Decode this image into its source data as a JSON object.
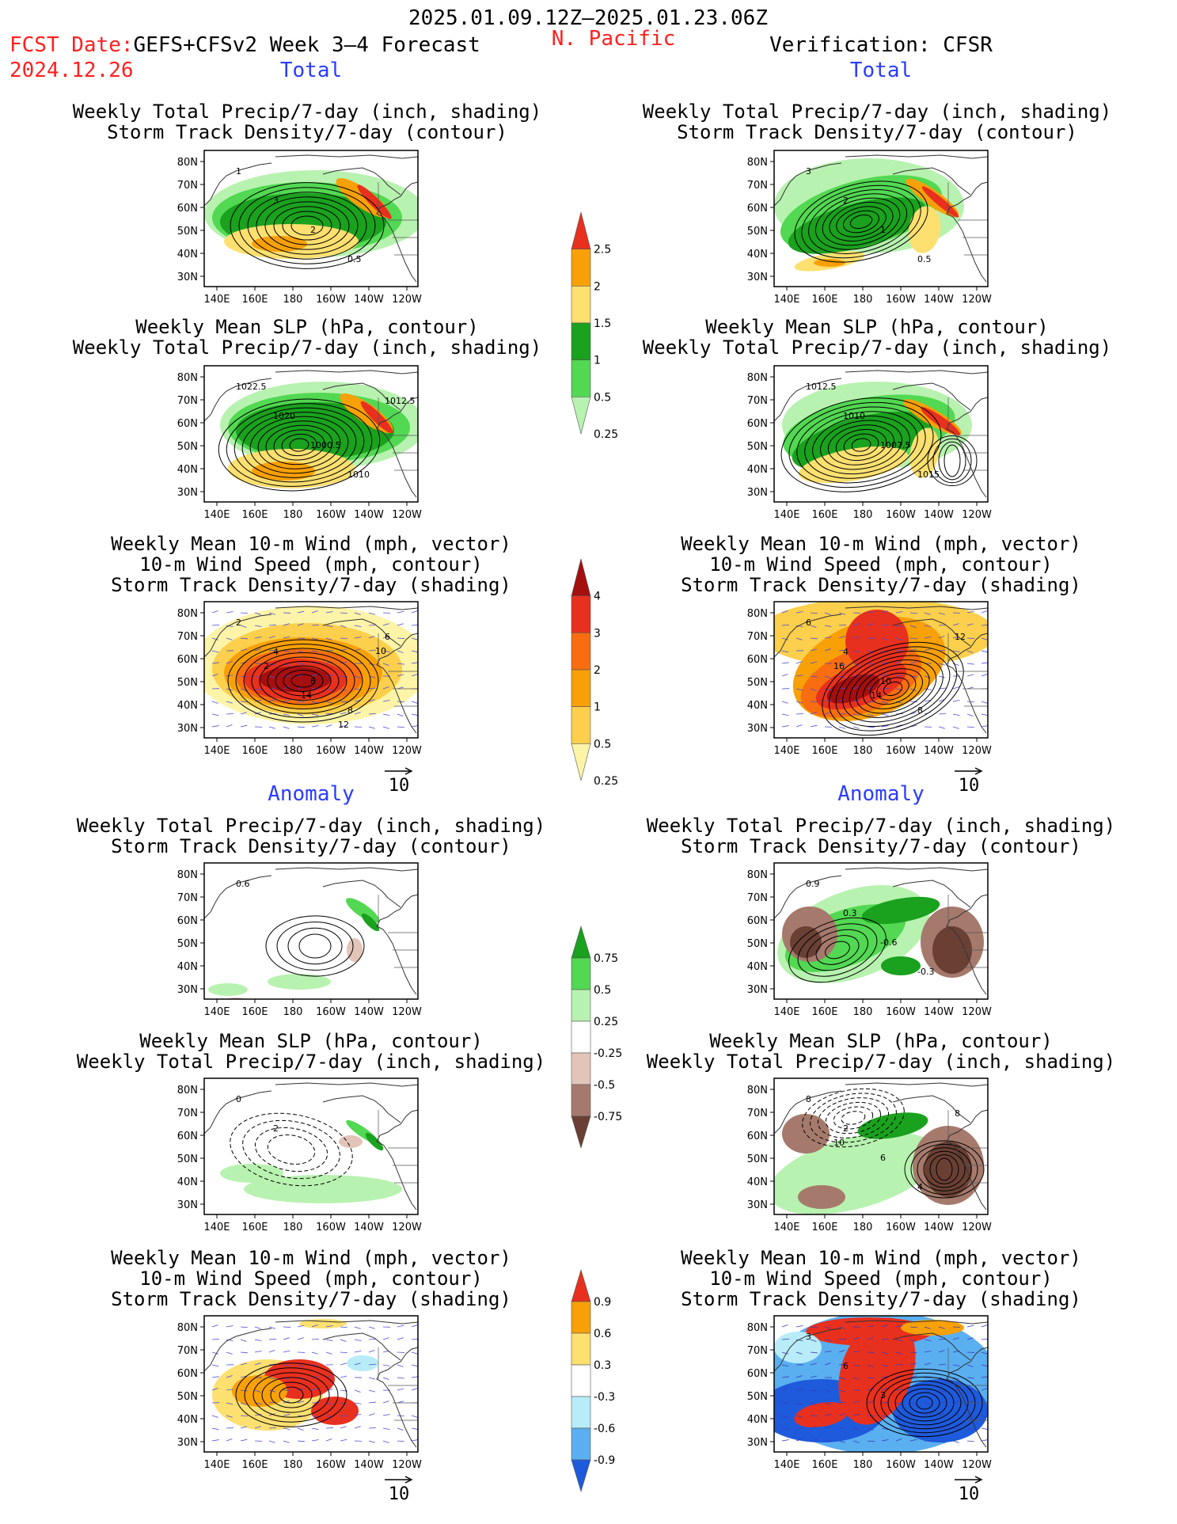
{
  "header": {
    "date_range": "2025.01.09.12Z–2025.01.23.06Z",
    "fcst_date_label": "FCST Date:",
    "fcst_model": "GEFS+CFSv2 Week 3–4 Forecast",
    "fcst_date": "2024.12.26",
    "region": "N. Pacific",
    "verification": "Verification: CFSR"
  },
  "sections": {
    "total": "Total",
    "anomaly": "Anomaly"
  },
  "panel_titles": {
    "precip_storm": [
      "Weekly Total Precip/7-day (inch, shading)",
      "Storm Track Density/7-day (contour)"
    ],
    "slp_precip": [
      "Weekly Mean SLP (hPa, contour)",
      "Weekly Total Precip/7-day (inch, shading)"
    ],
    "wind_storm": [
      "Weekly Mean 10-m Wind (mph, vector)",
      "10-m Wind Speed (mph, contour)",
      "Storm Track Density/7-day (shading)"
    ]
  },
  "axes": {
    "lat_ticks": [
      "80N",
      "70N",
      "60N",
      "50N",
      "40N",
      "30N"
    ],
    "lon_ticks": [
      "140E",
      "160E",
      "180",
      "160W",
      "140W",
      "120W"
    ]
  },
  "vector_ref": "10",
  "colorbars": {
    "precip_total": {
      "labels": [
        "2.5",
        "2",
        "1.5",
        "1",
        "0.5",
        "0.25"
      ],
      "colors": [
        "#e8301e",
        "#f8a008",
        "#fde070",
        "#1aa11e",
        "#52d852",
        "#b8f2b0"
      ]
    },
    "storm_total": {
      "labels": [
        "4",
        "3",
        "2",
        "1",
        "0.5",
        "0.25"
      ],
      "colors": [
        "#a50f0f",
        "#e8301e",
        "#f86d10",
        "#f8a008",
        "#fccf4c",
        "#fdf4a8"
      ]
    },
    "precip_anom": {
      "labels": [
        "0.75",
        "0.5",
        "0.25",
        "-0.25",
        "-0.5",
        "-0.75"
      ],
      "colors": [
        "#1aa11e",
        "#52d852",
        "#b8f2b0",
        "#ffffff",
        "#e3c4b8",
        "#a57a6c",
        "#6a4034"
      ]
    },
    "storm_anom": {
      "labels": [
        "0.9",
        "0.6",
        "0.3",
        "-0.3",
        "-0.6",
        "-0.9"
      ],
      "colors": [
        "#e8301e",
        "#f8a008",
        "#fde070",
        "#ffffff",
        "#b8ecf8",
        "#5aaff0",
        "#1e5adc"
      ]
    }
  },
  "contour_labels": {
    "fc_total_precip": [
      "1",
      "3",
      "2",
      "0.5"
    ],
    "fc_total_slp": [
      "1022.5",
      "1020",
      "1000.5",
      "1010",
      "1012.5"
    ],
    "fc_total_wind": [
      "2",
      "4",
      "6",
      "8",
      "6",
      "2",
      "14",
      "12",
      "10"
    ],
    "ob_total_precip": [
      "3",
      "2",
      "1",
      "0.5"
    ],
    "ob_total_slp": [
      "1012.5",
      "1010",
      "1007.5",
      "1015"
    ],
    "ob_total_wind": [
      "6",
      "4",
      "10",
      "8",
      "12",
      "16",
      "14"
    ],
    "fc_anom_precip": [
      "0.6"
    ],
    "fc_anom_slp": [
      "0",
      "2"
    ],
    "ob_anom_precip": [
      "0.9",
      "0.3",
      "-0.6",
      "-0.3"
    ],
    "ob_anom_slp": [
      "8",
      "2",
      "6",
      "4",
      "8",
      "10"
    ],
    "ob_anom_wind": [
      "3",
      "6",
      "3"
    ]
  }
}
